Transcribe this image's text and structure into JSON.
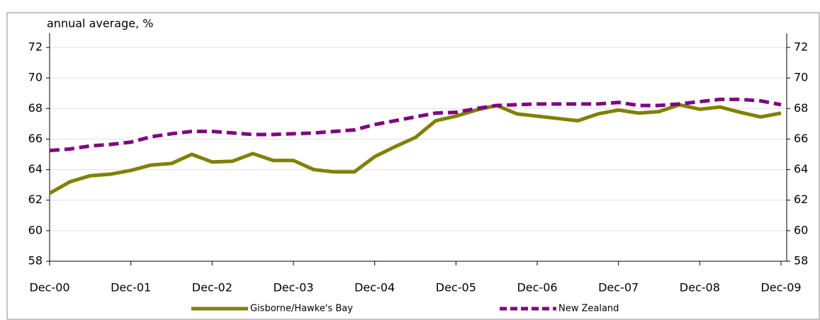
{
  "chart_data": {
    "type": "line",
    "y_label": "annual average, %",
    "categories": [
      "Dec-00",
      null,
      null,
      null,
      "Dec-01",
      null,
      null,
      null,
      "Dec-02",
      null,
      null,
      null,
      "Dec-03",
      null,
      null,
      null,
      "Dec-04",
      null,
      null,
      null,
      "Dec-05",
      null,
      null,
      null,
      "Dec-06",
      null,
      null,
      null,
      "Dec-07",
      null,
      null,
      null,
      "Dec-08",
      null,
      null,
      null,
      "Dec-09"
    ],
    "series": [
      {
        "name": "Gisborne/Hawke's Bay",
        "color": "#808000",
        "dash": false,
        "values": [
          62.45,
          63.2,
          63.6,
          63.7,
          63.95,
          64.3,
          64.4,
          65.0,
          64.5,
          64.55,
          65.05,
          64.6,
          64.6,
          64.0,
          63.85,
          63.85,
          64.85,
          65.5,
          66.1,
          67.2,
          67.5,
          67.9,
          68.2,
          67.65,
          67.5,
          67.35,
          67.2,
          67.65,
          67.9,
          67.7,
          67.8,
          68.25,
          67.95,
          68.1,
          67.75,
          67.45,
          67.7
        ]
      },
      {
        "name": "New Zealand",
        "color": "#800080",
        "dash": true,
        "values": [
          65.25,
          65.35,
          65.55,
          65.65,
          65.8,
          66.15,
          66.35,
          66.5,
          66.5,
          66.4,
          66.3,
          66.3,
          66.35,
          66.4,
          66.5,
          66.6,
          66.95,
          67.2,
          67.45,
          67.7,
          67.75,
          68.0,
          68.2,
          68.25,
          68.3,
          68.3,
          68.3,
          68.3,
          68.4,
          68.2,
          68.2,
          68.3,
          68.45,
          68.6,
          68.6,
          68.5,
          68.25
        ]
      }
    ],
    "ylim": [
      58,
      72
    ],
    "yticks": [
      58,
      60,
      62,
      64,
      66,
      68,
      70,
      72
    ],
    "y2lim": [
      58,
      72
    ],
    "y2ticks": [
      58,
      60,
      62,
      64,
      66,
      68,
      70,
      72
    ],
    "grid": true,
    "legend": "bottom"
  }
}
